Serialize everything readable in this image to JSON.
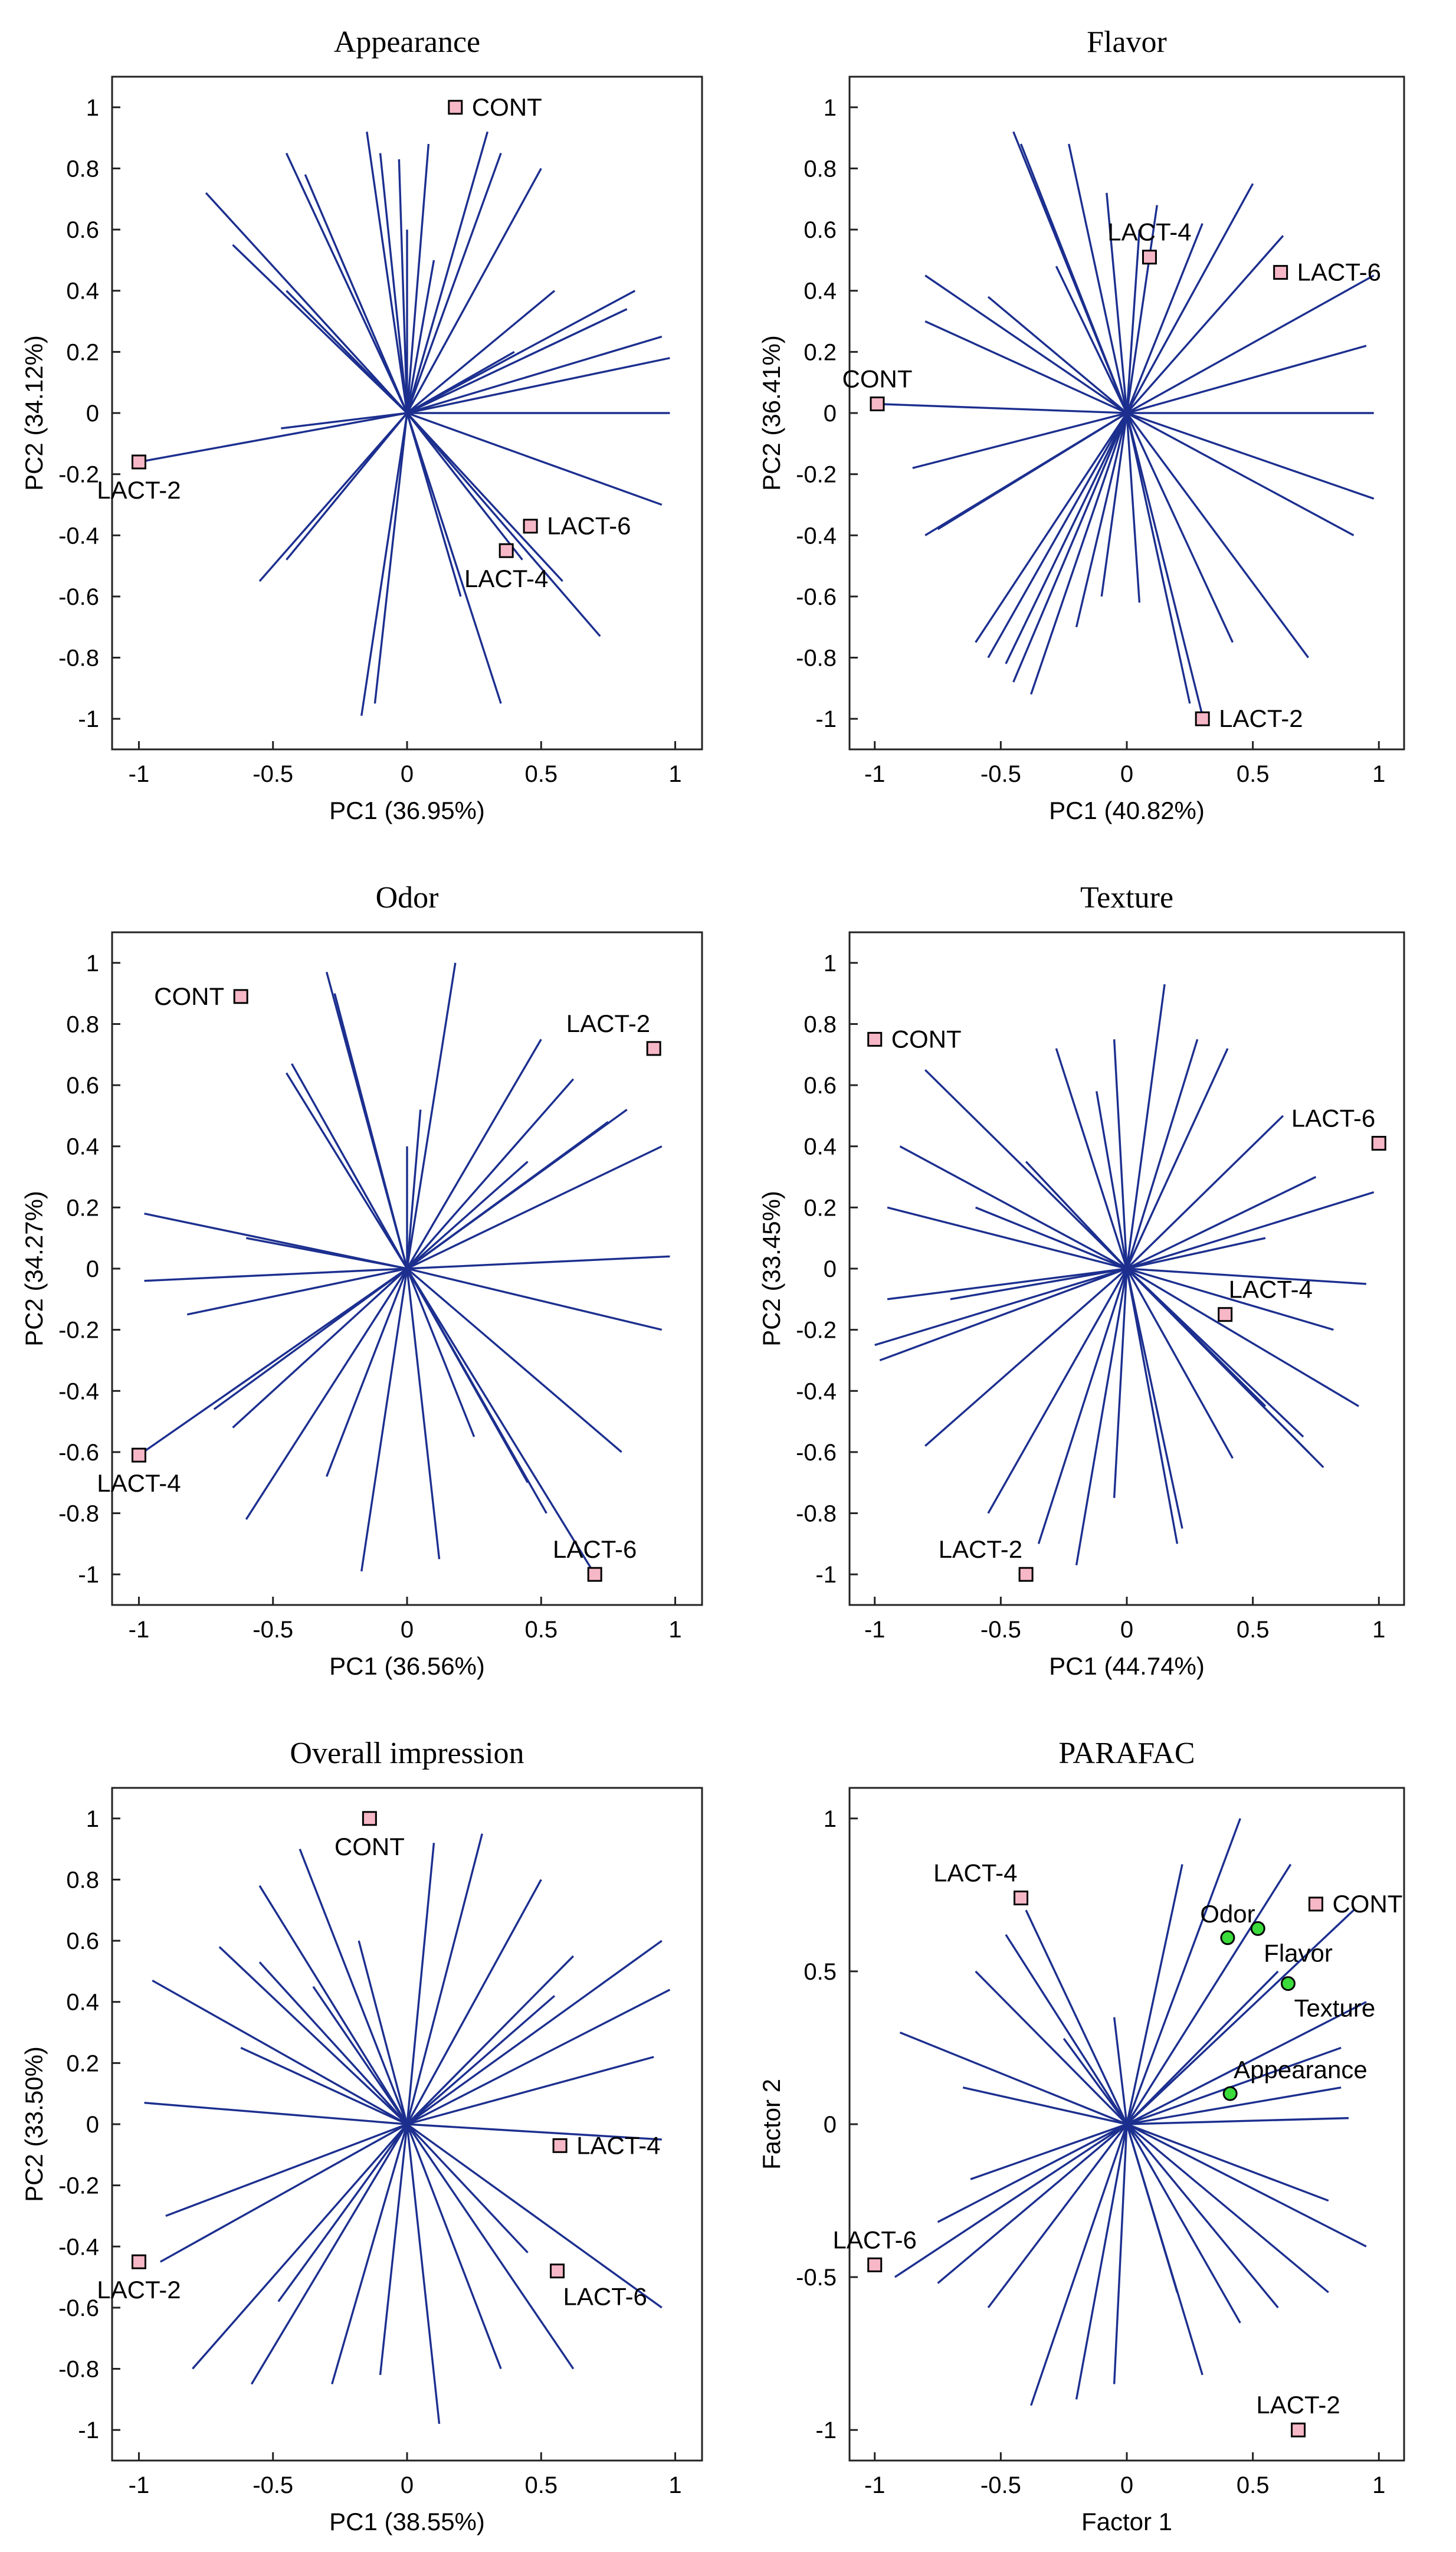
{
  "chart_data": [
    {
      "type": "scatter",
      "subtype": "biplot",
      "title": "Appearance",
      "xlabel": "PC1 (36.95%)",
      "ylabel": "PC2 (34.12%)",
      "xlim": [
        -1.1,
        1.1
      ],
      "ylim": [
        -1.1,
        1.1
      ],
      "xticks": [
        -1,
        -0.5,
        0,
        0.5,
        1
      ],
      "yticks": [
        -1,
        -0.8,
        -0.6,
        -0.4,
        -0.2,
        0,
        0.2,
        0.4,
        0.6,
        0.8,
        1
      ],
      "points": [
        {
          "label": "CONT",
          "x": 0.18,
          "y": 1.0,
          "label_pos": "right"
        },
        {
          "label": "LACT-2",
          "x": -1.0,
          "y": -0.16,
          "label_pos": "below"
        },
        {
          "label": "LACT-6",
          "x": 0.46,
          "y": -0.37,
          "label_pos": "right"
        },
        {
          "label": "LACT-4",
          "x": 0.37,
          "y": -0.45,
          "label_pos": "below"
        }
      ],
      "loadings": [
        [
          -0.45,
          0.85
        ],
        [
          -0.75,
          0.72
        ],
        [
          -0.38,
          0.78
        ],
        [
          -0.15,
          0.92
        ],
        [
          -0.1,
          0.85
        ],
        [
          -0.03,
          0.83
        ],
        [
          0.08,
          0.88
        ],
        [
          0.3,
          0.92
        ],
        [
          0.5,
          0.8
        ],
        [
          0.55,
          0.4
        ],
        [
          0.85,
          0.4
        ],
        [
          0.95,
          0.25
        ],
        [
          0.98,
          0.18
        ],
        [
          -0.65,
          0.55
        ],
        [
          -0.45,
          0.4
        ],
        [
          0.4,
          0.2
        ],
        [
          0.98,
          0
        ],
        [
          0.95,
          -0.3
        ],
        [
          0.72,
          -0.73
        ],
        [
          0.58,
          -0.55
        ],
        [
          0.43,
          -0.48
        ],
        [
          0.35,
          -0.95
        ],
        [
          0.2,
          -0.6
        ],
        [
          -0.12,
          -0.95
        ],
        [
          -0.17,
          -0.99
        ],
        [
          -0.45,
          -0.48
        ],
        [
          -0.55,
          -0.55
        ],
        [
          -0.47,
          -0.05
        ],
        [
          -1.0,
          -0.16
        ],
        [
          0.82,
          0.34
        ],
        [
          0.35,
          0.85
        ],
        [
          0.0,
          0.6
        ],
        [
          0.1,
          0.5
        ]
      ]
    },
    {
      "type": "scatter",
      "subtype": "biplot",
      "title": "Flavor",
      "xlabel": "PC1 (40.82%)",
      "ylabel": "PC2 (36.41%)",
      "xlim": [
        -1.1,
        1.1
      ],
      "ylim": [
        -1.1,
        1.1
      ],
      "xticks": [
        -1,
        -0.5,
        0,
        0.5,
        1
      ],
      "yticks": [
        -1,
        -0.8,
        -0.6,
        -0.4,
        -0.2,
        0,
        0.2,
        0.4,
        0.6,
        0.8,
        1
      ],
      "points": [
        {
          "label": "LACT-4",
          "x": 0.09,
          "y": 0.51,
          "label_pos": "above"
        },
        {
          "label": "LACT-6",
          "x": 0.61,
          "y": 0.46,
          "label_pos": "right"
        },
        {
          "label": "CONT",
          "x": -0.99,
          "y": 0.03,
          "label_pos": "above"
        },
        {
          "label": "LACT-2",
          "x": 0.3,
          "y": -1.0,
          "label_pos": "right"
        }
      ],
      "loadings": [
        [
          -0.45,
          0.92
        ],
        [
          -0.42,
          0.88
        ],
        [
          -0.23,
          0.88
        ],
        [
          -0.08,
          0.72
        ],
        [
          0.05,
          0.6
        ],
        [
          0.12,
          0.68
        ],
        [
          0.3,
          0.62
        ],
        [
          0.5,
          0.75
        ],
        [
          0.62,
          0.58
        ],
        [
          0.98,
          0.45
        ],
        [
          0.95,
          0.22
        ],
        [
          0.98,
          0.0
        ],
        [
          0.98,
          -0.28
        ],
        [
          0.9,
          -0.4
        ],
        [
          0.72,
          -0.8
        ],
        [
          0.3,
          -0.99
        ],
        [
          0.25,
          -0.95
        ],
        [
          -0.1,
          -0.6
        ],
        [
          -0.2,
          -0.7
        ],
        [
          -0.38,
          -0.92
        ],
        [
          -0.55,
          -0.8
        ],
        [
          -0.6,
          -0.75
        ],
        [
          -0.75,
          -0.38
        ],
        [
          -0.8,
          -0.4
        ],
        [
          -0.85,
          -0.18
        ],
        [
          -1.0,
          0.03
        ],
        [
          -0.8,
          0.3
        ],
        [
          -0.8,
          0.45
        ],
        [
          -0.55,
          0.38
        ],
        [
          -0.28,
          0.48
        ],
        [
          -0.48,
          -0.82
        ],
        [
          -0.45,
          -0.88
        ],
        [
          0.05,
          -0.62
        ],
        [
          0.42,
          -0.75
        ]
      ]
    },
    {
      "type": "scatter",
      "subtype": "biplot",
      "title": "Odor",
      "xlabel": "PC1 (36.56%)",
      "ylabel": "PC2 (34.27%)",
      "xlim": [
        -1.1,
        1.1
      ],
      "ylim": [
        -1.1,
        1.1
      ],
      "xticks": [
        -1,
        -0.5,
        0,
        0.5,
        1
      ],
      "yticks": [
        -1,
        -0.8,
        -0.6,
        -0.4,
        -0.2,
        0,
        0.2,
        0.4,
        0.6,
        0.8,
        1
      ],
      "points": [
        {
          "label": "CONT",
          "x": -0.62,
          "y": 0.89,
          "label_pos": "left"
        },
        {
          "label": "LACT-2",
          "x": 0.92,
          "y": 0.72,
          "label_pos": "above-left"
        },
        {
          "label": "LACT-4",
          "x": -1.0,
          "y": -0.61,
          "label_pos": "below"
        },
        {
          "label": "LACT-6",
          "x": 0.7,
          "y": -1.0,
          "label_pos": "above"
        }
      ],
      "loadings": [
        [
          -0.3,
          0.97
        ],
        [
          -0.27,
          0.9
        ],
        [
          -0.43,
          0.67
        ],
        [
          -0.45,
          0.64
        ],
        [
          0.18,
          1.0
        ],
        [
          0.05,
          0.52
        ],
        [
          0.5,
          0.75
        ],
        [
          0.62,
          0.62
        ],
        [
          0.82,
          0.52
        ],
        [
          0.75,
          0.48
        ],
        [
          0.95,
          0.4
        ],
        [
          0.98,
          0.04
        ],
        [
          0.95,
          -0.2
        ],
        [
          0.8,
          -0.6
        ],
        [
          0.52,
          -0.8
        ],
        [
          0.45,
          -0.7
        ],
        [
          0.12,
          -0.95
        ],
        [
          -0.17,
          -0.99
        ],
        [
          -0.3,
          -0.68
        ],
        [
          -0.6,
          -0.82
        ],
        [
          -0.72,
          -0.46
        ],
        [
          -0.65,
          -0.52
        ],
        [
          -0.82,
          -0.15
        ],
        [
          -0.98,
          0.18
        ],
        [
          -0.98,
          -0.04
        ],
        [
          -0.6,
          0.1
        ],
        [
          0.25,
          -0.55
        ],
        [
          -1.0,
          -0.61
        ],
        [
          0.7,
          -1.0
        ],
        [
          0.45,
          0.35
        ],
        [
          0.0,
          0.4
        ]
      ]
    },
    {
      "type": "scatter",
      "subtype": "biplot",
      "title": "Texture",
      "xlabel": "PC1 (44.74%)",
      "ylabel": "PC2 (33.45%)",
      "xlim": [
        -1.1,
        1.1
      ],
      "ylim": [
        -1.1,
        1.1
      ],
      "xticks": [
        -1,
        -0.5,
        0,
        0.5,
        1
      ],
      "yticks": [
        -1,
        -0.8,
        -0.6,
        -0.4,
        -0.2,
        0,
        0.2,
        0.4,
        0.6,
        0.8,
        1
      ],
      "points": [
        {
          "label": "CONT",
          "x": -1.0,
          "y": 0.75,
          "label_pos": "right"
        },
        {
          "label": "LACT-6",
          "x": 1.0,
          "y": 0.41,
          "label_pos": "above-left"
        },
        {
          "label": "LACT-4",
          "x": 0.39,
          "y": -0.15,
          "label_pos": "above-right"
        },
        {
          "label": "LACT-2",
          "x": -0.4,
          "y": -1.0,
          "label_pos": "above-left"
        }
      ],
      "loadings": [
        [
          -0.8,
          0.65
        ],
        [
          -0.28,
          0.72
        ],
        [
          -0.12,
          0.58
        ],
        [
          -0.05,
          0.75
        ],
        [
          0.28,
          0.75
        ],
        [
          0.4,
          0.72
        ],
        [
          0.15,
          0.93
        ],
        [
          0.62,
          0.5
        ],
        [
          0.75,
          0.3
        ],
        [
          0.98,
          0.25
        ],
        [
          0.55,
          0.1
        ],
        [
          0.95,
          -0.05
        ],
        [
          0.82,
          -0.2
        ],
        [
          0.92,
          -0.45
        ],
        [
          0.78,
          -0.65
        ],
        [
          0.72,
          -0.6
        ],
        [
          0.7,
          -0.55
        ],
        [
          0.42,
          -0.62
        ],
        [
          0.22,
          -0.85
        ],
        [
          0.2,
          -0.9
        ],
        [
          -0.05,
          -0.75
        ],
        [
          -0.35,
          -0.9
        ],
        [
          -0.55,
          -0.8
        ],
        [
          -0.8,
          -0.58
        ],
        [
          -0.98,
          -0.3
        ],
        [
          -1.0,
          -0.25
        ],
        [
          -0.95,
          -0.1
        ],
        [
          -0.95,
          0.2
        ],
        [
          -0.9,
          0.4
        ],
        [
          -0.4,
          0.35
        ],
        [
          -0.6,
          0.2
        ],
        [
          -0.7,
          -0.1
        ],
        [
          -0.2,
          -0.97
        ],
        [
          0.55,
          -0.45
        ]
      ]
    },
    {
      "type": "scatter",
      "subtype": "biplot",
      "title": "Overall impression",
      "xlabel": "PC1 (38.55%)",
      "ylabel": "PC2 (33.50%)",
      "xlim": [
        -1.1,
        1.1
      ],
      "ylim": [
        -1.1,
        1.1
      ],
      "xticks": [
        -1,
        -0.5,
        0,
        0.5,
        1
      ],
      "yticks": [
        -1,
        -0.8,
        -0.6,
        -0.4,
        -0.2,
        0,
        0.2,
        0.4,
        0.6,
        0.8,
        1
      ],
      "points": [
        {
          "label": "CONT",
          "x": -0.14,
          "y": 1.0,
          "label_pos": "below"
        },
        {
          "label": "LACT-4",
          "x": 0.57,
          "y": -0.07,
          "label_pos": "right"
        },
        {
          "label": "LACT-6",
          "x": 0.56,
          "y": -0.48,
          "label_pos": "below-right"
        },
        {
          "label": "LACT-2",
          "x": -1.0,
          "y": -0.45,
          "label_pos": "below"
        }
      ],
      "loadings": [
        [
          -0.4,
          0.9
        ],
        [
          -0.55,
          0.78
        ],
        [
          -0.7,
          0.58
        ],
        [
          -0.55,
          0.53
        ],
        [
          -0.95,
          0.47
        ],
        [
          -0.35,
          0.45
        ],
        [
          -0.18,
          0.6
        ],
        [
          0.1,
          0.92
        ],
        [
          0.28,
          0.95
        ],
        [
          0.5,
          0.8
        ],
        [
          0.62,
          0.55
        ],
        [
          0.95,
          0.6
        ],
        [
          0.98,
          0.44
        ],
        [
          0.92,
          0.22
        ],
        [
          0.95,
          -0.05
        ],
        [
          0.95,
          -0.6
        ],
        [
          0.62,
          -0.8
        ],
        [
          0.35,
          -0.8
        ],
        [
          0.12,
          -0.98
        ],
        [
          -0.1,
          -0.82
        ],
        [
          -0.28,
          -0.85
        ],
        [
          -0.58,
          -0.85
        ],
        [
          -0.8,
          -0.8
        ],
        [
          -0.92,
          -0.45
        ],
        [
          -0.9,
          -0.3
        ],
        [
          -0.98,
          0.07
        ],
        [
          -0.62,
          0.25
        ],
        [
          0.55,
          0.42
        ],
        [
          0.45,
          -0.42
        ],
        [
          -0.48,
          -0.58
        ]
      ]
    },
    {
      "type": "scatter",
      "subtype": "biplot",
      "title": "PARAFAC",
      "xlabel": "Factor 1",
      "ylabel": "Factor 2",
      "xlim": [
        -1.1,
        1.1
      ],
      "ylim": [
        -1.1,
        1.1
      ],
      "xticks": [
        -1,
        -0.5,
        0,
        0.5,
        1
      ],
      "yticks": [
        -1,
        -0.5,
        0,
        0.5,
        1
      ],
      "points": [
        {
          "label": "LACT-4",
          "x": -0.42,
          "y": 0.74,
          "label_pos": "above-left"
        },
        {
          "label": "CONT",
          "x": 0.75,
          "y": 0.72,
          "label_pos": "right"
        },
        {
          "label": "LACT-6",
          "x": -1.0,
          "y": -0.46,
          "label_pos": "above"
        },
        {
          "label": "LACT-2",
          "x": 0.68,
          "y": -1.0,
          "label_pos": "above"
        }
      ],
      "attributes": [
        {
          "label": "Odor",
          "x": 0.4,
          "y": 0.61,
          "label_pos": "above"
        },
        {
          "label": "Flavor",
          "x": 0.52,
          "y": 0.64,
          "label_pos": "below-right"
        },
        {
          "label": "Texture",
          "x": 0.64,
          "y": 0.46,
          "label_pos": "below-right"
        },
        {
          "label": "Appearance",
          "x": 0.41,
          "y": 0.1,
          "label_pos": "above-right"
        }
      ],
      "loadings": [
        [
          0.45,
          1.0
        ],
        [
          0.22,
          0.85
        ],
        [
          -0.48,
          0.62
        ],
        [
          -0.4,
          0.7
        ],
        [
          -0.6,
          0.5
        ],
        [
          -0.9,
          0.3
        ],
        [
          -0.65,
          0.12
        ],
        [
          -0.25,
          0.28
        ],
        [
          -0.05,
          0.35
        ],
        [
          0.65,
          0.85
        ],
        [
          0.9,
          0.7
        ],
        [
          0.95,
          0.4
        ],
        [
          0.85,
          0.25
        ],
        [
          0.85,
          0.12
        ],
        [
          0.88,
          0.02
        ],
        [
          0.8,
          -0.25
        ],
        [
          0.95,
          -0.4
        ],
        [
          0.8,
          -0.55
        ],
        [
          0.6,
          -0.6
        ],
        [
          0.45,
          -0.65
        ],
        [
          0.3,
          -0.82
        ],
        [
          0.2,
          -0.55
        ],
        [
          -0.05,
          -0.85
        ],
        [
          -0.2,
          -0.9
        ],
        [
          -0.38,
          -0.92
        ],
        [
          -0.55,
          -0.6
        ],
        [
          -0.75,
          -0.52
        ],
        [
          -0.92,
          -0.5
        ],
        [
          -0.75,
          -0.32
        ],
        [
          -0.62,
          -0.18
        ],
        [
          0.6,
          0.5
        ]
      ]
    }
  ],
  "style": {
    "loading_color": "#1c2f8f",
    "sample_fill": "#f6b7c6",
    "attribute_fill": "#3adb3a"
  }
}
